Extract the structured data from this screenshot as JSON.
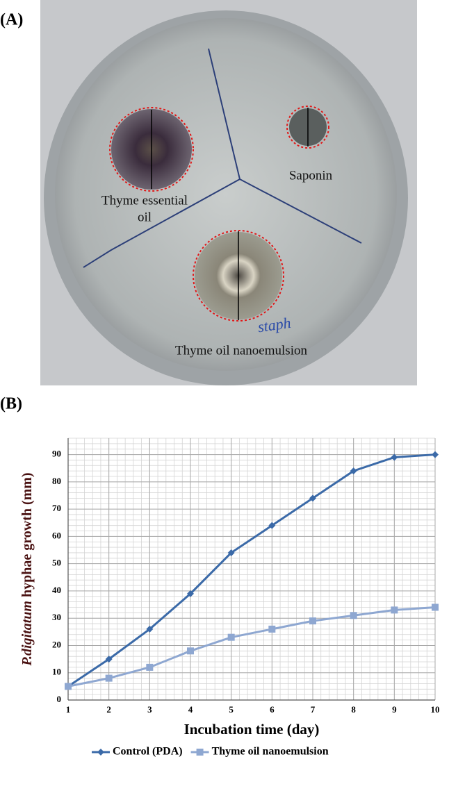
{
  "photo": {
    "label": "(A)",
    "thyme_essential_oil": [
      "Thyme essential",
      "oil"
    ],
    "saponin": "Saponin",
    "nanoemulsion": "Thyme oil nanoemulsion",
    "handwriting": "staph"
  },
  "chart_data": {
    "type": "line",
    "panel_label": "(B)",
    "x_label": "Incubation time (day)",
    "y_label": {
      "italic": "P.digitatum",
      "text": "hyphae growth (mm)"
    },
    "x": [
      1,
      2,
      3,
      4,
      5,
      6,
      7,
      8,
      9,
      10
    ],
    "series": [
      {
        "name": "Control (PDA)",
        "color": "#3b6aa8",
        "marker": "diamond",
        "values": [
          5,
          15,
          26,
          39,
          54,
          64,
          74,
          84,
          89,
          90
        ]
      },
      {
        "name": "Thyme oil nanoemulsion",
        "color": "#8ea7d1",
        "marker": "square",
        "values": [
          5,
          8,
          12,
          18,
          23,
          26,
          29,
          31,
          33,
          34
        ]
      }
    ],
    "xlim": [
      1,
      10
    ],
    "xticks": [
      1,
      2,
      3,
      4,
      5,
      6,
      7,
      8,
      9,
      10
    ],
    "ylim": [
      0,
      96
    ],
    "yticks": [
      0,
      10,
      20,
      30,
      40,
      50,
      60,
      70,
      80,
      90
    ],
    "grid": true,
    "legend": "bottom"
  }
}
